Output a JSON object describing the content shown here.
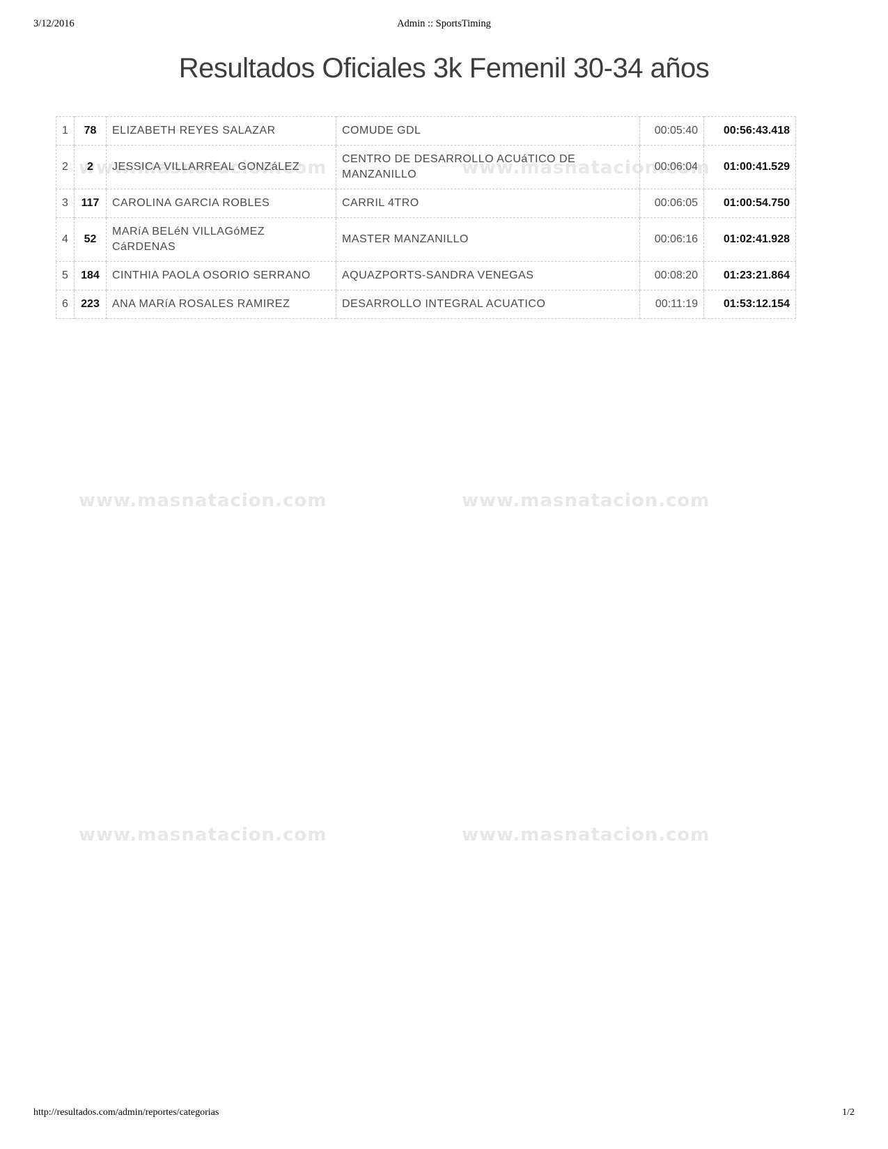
{
  "page_header": {
    "date": "3/12/2016",
    "title": "Admin :: SportsTiming"
  },
  "report": {
    "title": "Resultados Oficiales 3k Femenil 30-34 años"
  },
  "watermark": {
    "text": "www.masnatacion.com"
  },
  "results": {
    "rows": [
      {
        "pos": "1",
        "bib": "78",
        "name": "ELIZABETH REYES SALAZAR",
        "team": "COMUDE GDL",
        "split": "00:05:40",
        "final": "00:56:43.418"
      },
      {
        "pos": "2",
        "bib": "2",
        "name": "JESSICA VILLARREAL GONZáLEZ",
        "team": "CENTRO DE DESARROLLO ACUáTICO DE MANZANILLO",
        "split": "00:06:04",
        "final": "01:00:41.529"
      },
      {
        "pos": "3",
        "bib": "117",
        "name": "CAROLINA GARCIA ROBLES",
        "team": "CARRIL 4TRO",
        "split": "00:06:05",
        "final": "01:00:54.750"
      },
      {
        "pos": "4",
        "bib": "52",
        "name": "MARíA BELéN VILLAGóMEZ CáRDENAS",
        "team": "MASTER MANZANILLO",
        "split": "00:06:16",
        "final": "01:02:41.928"
      },
      {
        "pos": "5",
        "bib": "184",
        "name": "CINTHIA PAOLA OSORIO SERRANO",
        "team": "AQUAZPORTS-SANDRA VENEGAS",
        "split": "00:08:20",
        "final": "01:23:21.864"
      },
      {
        "pos": "6",
        "bib": "223",
        "name": "ANA MARíA ROSALES RAMIREZ",
        "team": "DESARROLLO INTEGRAL ACUATICO",
        "split": "00:11:19",
        "final": "01:53:12.154"
      }
    ]
  },
  "page_footer": {
    "url": "http://resultados.com/admin/reportes/categorias",
    "page": "1/2"
  }
}
